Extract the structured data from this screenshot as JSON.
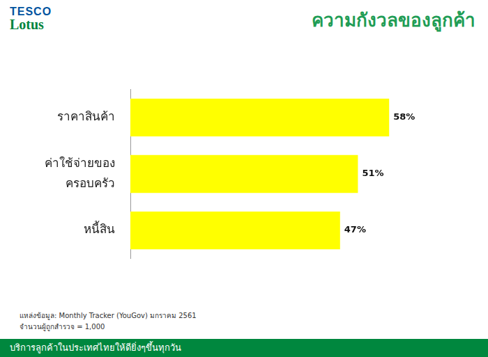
{
  "header": {
    "logo": [
      "TESCO",
      "Lotus"
    ]
  },
  "chart_data": {
    "type": "bar",
    "title": "ความกังวลของลูกค้า",
    "categories": [
      "ราคาสินค้า",
      "ค่าใช้จ่ายของ\nครอบครัว",
      "หนี้สิน"
    ],
    "values": [
      58,
      51,
      47
    ],
    "value_labels": [
      "58%",
      "51%",
      "47%"
    ],
    "color": "#ffff00",
    "orientation": "horizontal",
    "data_labels": true,
    "tick_labels": "y",
    "grid": false,
    "xlim": [
      0,
      75
    ],
    "annotations": [
      "แหล่งข้อมูล: Monthly Tracker (YouGov) มกราคม 2561",
      "จำนวนผู้ถูกสำรวจ = 1,000"
    ]
  },
  "footer": {
    "text": "บริการลูกค้าในประเทศไทยให้ดียิ่งๆขึ้นทุกวัน"
  }
}
